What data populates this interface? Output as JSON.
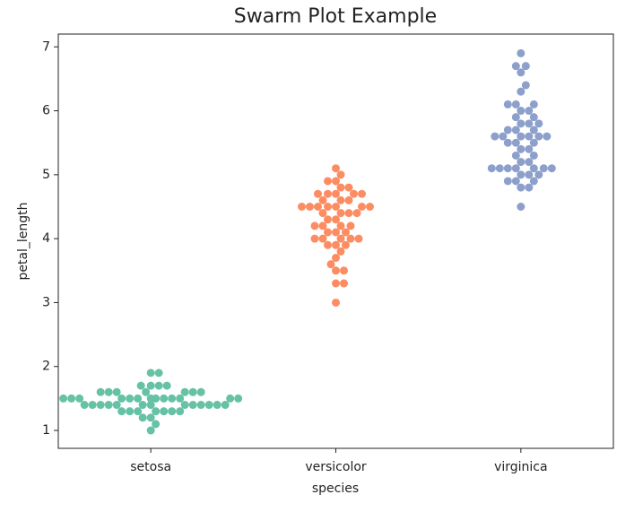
{
  "chart_data": {
    "type": "swarm",
    "title": "Swarm Plot Example",
    "x_label": "species",
    "y_label": "petal_length",
    "categories": [
      "setosa",
      "versicolor",
      "virginica"
    ],
    "groups": [
      {
        "color": "#66c2a5",
        "values": [
          1.4,
          1.4,
          1.3,
          1.5,
          1.4,
          1.7,
          1.4,
          1.5,
          1.4,
          1.5,
          1.5,
          1.6,
          1.4,
          1.1,
          1.2,
          1.5,
          1.3,
          1.4,
          1.7,
          1.5,
          1.7,
          1.5,
          1.0,
          1.7,
          1.9,
          1.6,
          1.6,
          1.5,
          1.4,
          1.6,
          1.6,
          1.5,
          1.5,
          1.4,
          1.5,
          1.2,
          1.3,
          1.4,
          1.3,
          1.5,
          1.3,
          1.3,
          1.3,
          1.6,
          1.9,
          1.4,
          1.6,
          1.4,
          1.5,
          1.4
        ]
      },
      {
        "color": "#fc8d62",
        "values": [
          4.7,
          4.5,
          4.9,
          4.0,
          4.6,
          4.5,
          4.7,
          3.3,
          4.6,
          3.9,
          3.5,
          4.2,
          4.0,
          4.7,
          3.6,
          4.4,
          4.5,
          4.1,
          4.5,
          3.9,
          4.8,
          4.0,
          4.9,
          4.7,
          4.3,
          4.4,
          4.8,
          5.0,
          4.5,
          3.5,
          3.8,
          3.7,
          3.9,
          5.1,
          4.5,
          4.5,
          4.7,
          4.4,
          4.1,
          4.0,
          4.4,
          4.6,
          4.0,
          3.3,
          4.2,
          4.2,
          4.2,
          4.3,
          3.0,
          4.1
        ]
      },
      {
        "color": "#8da0cb",
        "values": [
          6.0,
          5.1,
          5.9,
          5.6,
          5.8,
          6.6,
          4.5,
          6.3,
          5.8,
          6.1,
          5.1,
          5.3,
          5.5,
          5.0,
          5.1,
          5.3,
          5.5,
          6.7,
          6.9,
          5.0,
          5.7,
          4.9,
          6.7,
          4.9,
          5.7,
          6.0,
          4.8,
          4.9,
          5.6,
          5.8,
          6.1,
          6.4,
          5.6,
          5.1,
          5.6,
          6.1,
          5.6,
          5.5,
          4.8,
          5.4,
          5.6,
          5.1,
          5.1,
          5.9,
          5.7,
          5.2,
          5.0,
          5.2,
          5.4,
          5.1
        ]
      }
    ],
    "ylim": [
      0.72,
      7.2
    ],
    "yticks": [
      1,
      2,
      3,
      4,
      5,
      6,
      7
    ]
  }
}
